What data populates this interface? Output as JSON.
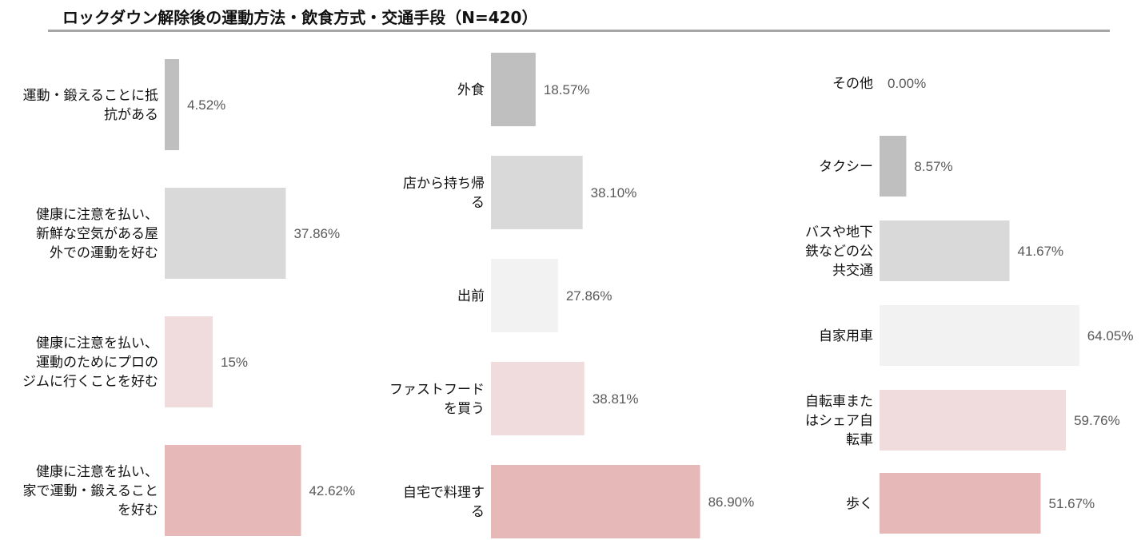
{
  "title": "ロックダウン解除後の運動方法・飲食方式・交通手段（N=420）",
  "colors": [
    "#bfbfbf",
    "#d9d9d9",
    "#f2f2f2",
    "#f0dcdc",
    "#e6b8b8"
  ],
  "chart_data": [
    {
      "type": "bar",
      "orientation": "horizontal",
      "categories": [
        "運動・鍛えることに抵抗がある",
        "健康に注意を払い、新鮮な空気がある屋外での運動を好む",
        "健康に注意を払い、運動のためにプロのジムに行くことを好む",
        "健康に注意を払い、家で運動・鍛えることを好む"
      ],
      "values": [
        4.52,
        37.86,
        15,
        42.62
      ],
      "value_labels": [
        "4.52%",
        "37.86%",
        "15%",
        "42.62%"
      ],
      "unit": "%"
    },
    {
      "type": "bar",
      "orientation": "horizontal",
      "categories": [
        "外食",
        "店から持ち帰る",
        "出前",
        "ファストフードを買う",
        "自宅で料理する"
      ],
      "values": [
        18.57,
        38.1,
        27.86,
        38.81,
        86.9
      ],
      "value_labels": [
        "18.57%",
        "38.10%",
        "27.86%",
        "38.81%",
        "86.90%"
      ],
      "unit": "%"
    },
    {
      "type": "bar",
      "orientation": "horizontal",
      "categories": [
        "その他",
        "タクシー",
        "バスや地下鉄などの公共交通",
        "自家用車",
        "自転車またはシェア自転車",
        "歩く"
      ],
      "values": [
        0.0,
        8.57,
        41.67,
        64.05,
        59.76,
        51.67
      ],
      "value_labels": [
        "0.00%",
        "8.57%",
        "41.67%",
        "64.05%",
        "59.76%",
        "51.67%"
      ],
      "unit": "%"
    }
  ]
}
